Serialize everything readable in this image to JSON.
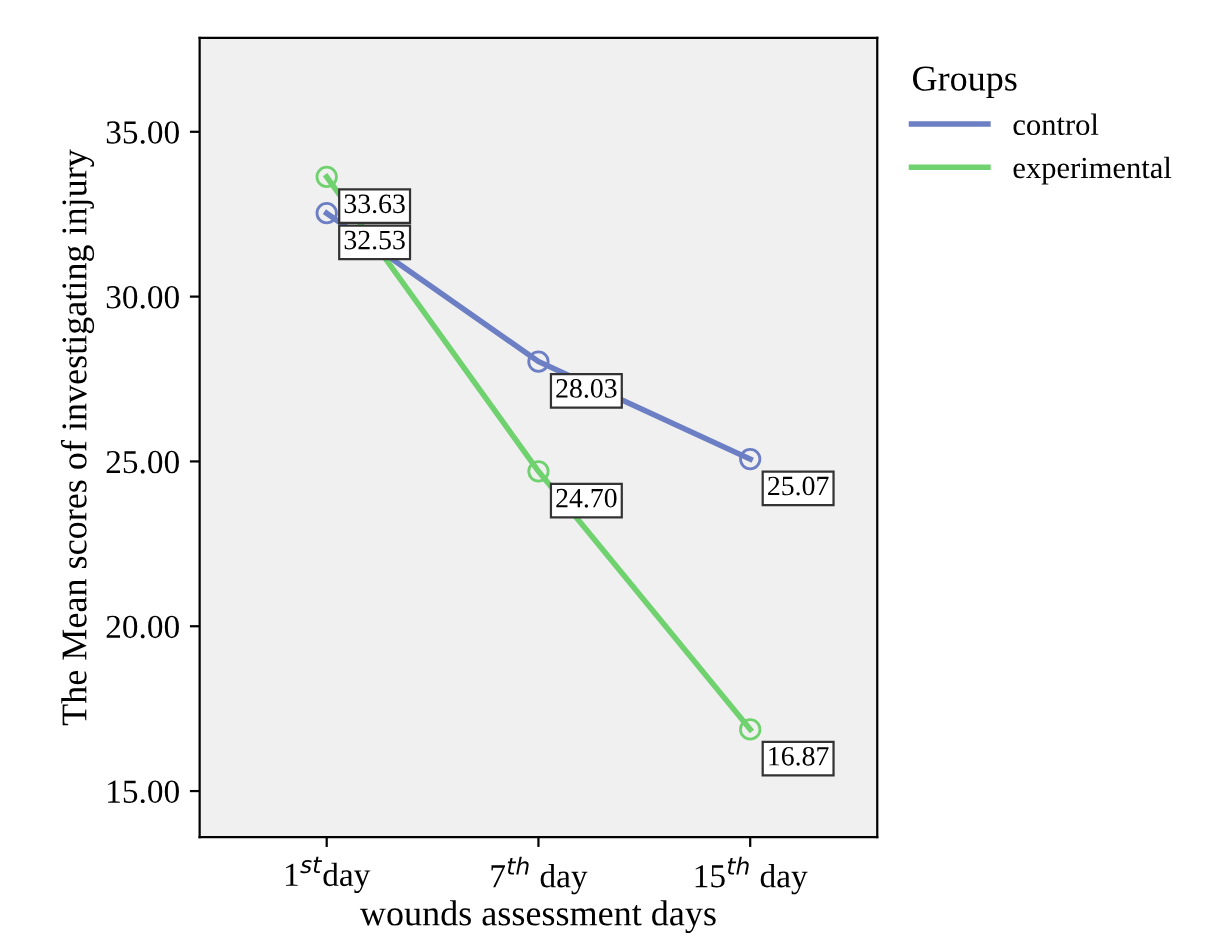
{
  "chart_data": {
    "type": "line",
    "xlabel": "wounds assessment days",
    "ylabel": "The Mean scores of investigating injury",
    "legend_title": "Groups",
    "categories": [
      "1$^{st}$day",
      "7$^{th}$ day",
      "15$^{th}$ day"
    ],
    "series": [
      {
        "name": "control",
        "color": "#6d7fc4",
        "values": [
          32.53,
          28.03,
          25.07
        ],
        "value_labels": [
          "32.53",
          "28.03",
          "25.07"
        ]
      },
      {
        "name": "experimental",
        "color": "#6fd26f",
        "values": [
          33.63,
          24.7,
          16.87
        ],
        "value_labels": [
          "33.63",
          "24.70",
          "16.87"
        ]
      }
    ],
    "ylim": [
      13.6,
      37.85
    ],
    "yticks": [
      {
        "value": 15,
        "label": "15.00"
      },
      {
        "value": 20,
        "label": "20.00"
      },
      {
        "value": 25,
        "label": "25.00"
      },
      {
        "value": 30,
        "label": "30.00"
      },
      {
        "value": 35,
        "label": "35.00"
      }
    ],
    "grid": false,
    "legend": "right",
    "marker": "circle",
    "line_style": "solid"
  }
}
